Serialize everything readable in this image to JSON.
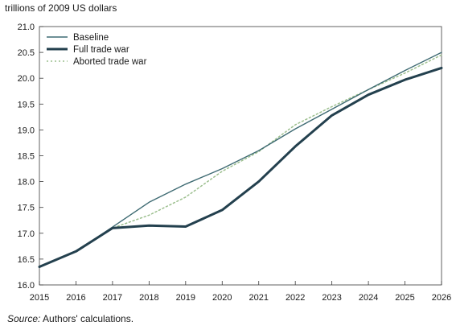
{
  "chart_data": {
    "type": "line",
    "title": "",
    "ylabel": "trillions of 2009 US dollars",
    "xlabel": "",
    "x": [
      2015,
      2016,
      2017,
      2018,
      2019,
      2020,
      2021,
      2022,
      2023,
      2024,
      2025,
      2026
    ],
    "xlim": [
      2015,
      2026
    ],
    "ylim": [
      16.0,
      21.0
    ],
    "yticks": [
      "16.0",
      "16.5",
      "17.0",
      "17.5",
      "18.0",
      "18.5",
      "19.0",
      "19.5",
      "20.0",
      "20.5",
      "21.0"
    ],
    "xticks": [
      "2015",
      "2016",
      "2017",
      "2018",
      "2019",
      "2020",
      "2021",
      "2022",
      "2023",
      "2024",
      "2025",
      "2026"
    ],
    "grid": false,
    "legend_position": "top-left",
    "series": [
      {
        "name": "Baseline",
        "color": "#3f6b73",
        "style": "thin",
        "values": [
          16.35,
          16.65,
          17.12,
          17.6,
          17.95,
          18.25,
          18.6,
          19.02,
          19.4,
          19.78,
          20.15,
          20.5
        ]
      },
      {
        "name": "Full trade war",
        "color": "#23404e",
        "style": "thick",
        "values": [
          16.35,
          16.65,
          17.1,
          17.15,
          17.13,
          17.45,
          18.0,
          18.68,
          19.28,
          19.68,
          19.97,
          20.2
        ]
      },
      {
        "name": "Aborted trade war",
        "color": "#9cbf8e",
        "style": "dotted",
        "values": [
          16.35,
          16.65,
          17.1,
          17.35,
          17.7,
          18.2,
          18.58,
          19.1,
          19.45,
          19.78,
          20.1,
          20.45
        ]
      }
    ]
  },
  "header": {
    "unit_label": "trillions of 2009 US dollars"
  },
  "footer": {
    "source_prefix": "Source:",
    "source_text": " Authors' calculations."
  }
}
